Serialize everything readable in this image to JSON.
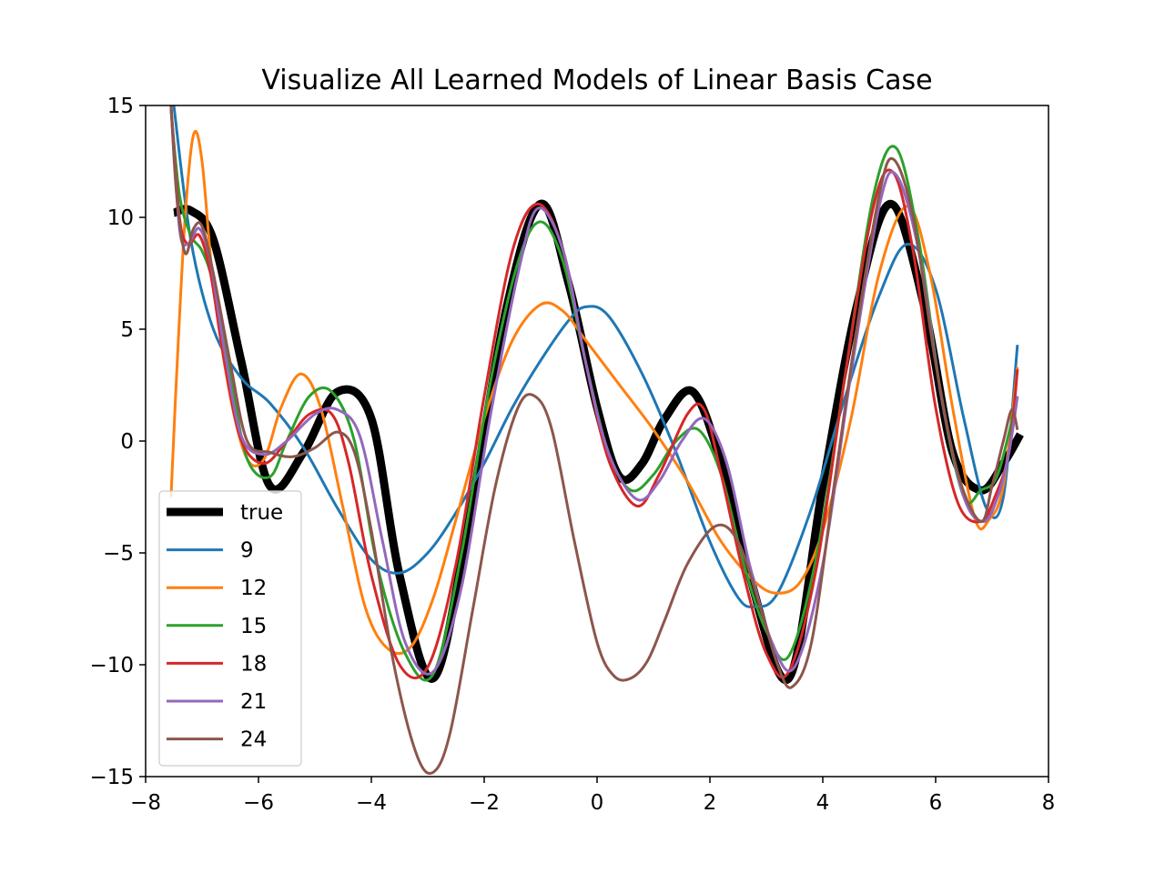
{
  "chart_data": {
    "type": "line",
    "title": "Visualize All Learned Models of Linear Basis Case",
    "xlabel": "",
    "ylabel": "",
    "xlim": [
      -8,
      8
    ],
    "ylim": [
      -15,
      15
    ],
    "x_ticks": [
      -8,
      -6,
      -4,
      -2,
      0,
      2,
      4,
      6,
      8
    ],
    "y_ticks": [
      -15,
      -10,
      -5,
      0,
      5,
      10,
      15
    ],
    "x_tick_labels": [
      "−8",
      "−6",
      "−4",
      "−2",
      "0",
      "2",
      "4",
      "6",
      "8"
    ],
    "y_tick_labels": [
      "−15",
      "−10",
      "−5",
      "0",
      "5",
      "10",
      "15"
    ],
    "grid": false,
    "legend_position": "lower-left",
    "series": [
      {
        "name": "true",
        "color": "#000000",
        "width": 9,
        "x": [
          -7.5,
          -7.2,
          -6.8,
          -6.3,
          -5.8,
          -5.2,
          -4.6,
          -4.0,
          -3.5,
          -2.9,
          -2.3,
          -1.6,
          -1.0,
          -0.5,
          0.0,
          0.4,
          0.8,
          1.2,
          1.7,
          2.2,
          2.7,
          3.4,
          4.0,
          4.6,
          5.2,
          5.8,
          6.3,
          6.8,
          7.2,
          7.5
        ],
        "y": [
          10.2,
          10.3,
          9.0,
          3.5,
          -2.0,
          -0.5,
          2.2,
          1.0,
          -6.0,
          -10.6,
          -4.0,
          6.0,
          10.6,
          7.0,
          1.5,
          -1.6,
          -1.0,
          1.0,
          2.2,
          -1.0,
          -6.0,
          -10.6,
          -2.0,
          6.0,
          10.6,
          6.0,
          -0.5,
          -2.2,
          -1.0,
          0.3
        ]
      },
      {
        "name": "9",
        "color": "#1f77b4",
        "width": 3,
        "x": [
          -7.5,
          -7.2,
          -6.8,
          -6.3,
          -5.8,
          -5.2,
          -4.6,
          -4.0,
          -3.5,
          -3.0,
          -2.5,
          -2.0,
          -1.5,
          -1.0,
          -0.5,
          -0.2,
          0.2,
          0.8,
          1.4,
          2.0,
          2.5,
          2.8,
          3.2,
          3.8,
          4.4,
          5.0,
          5.5,
          6.0,
          6.5,
          6.9,
          7.2,
          7.45
        ],
        "y": [
          15.0,
          9.0,
          5.0,
          2.8,
          1.7,
          -0.3,
          -3.0,
          -5.3,
          -5.9,
          -5.0,
          -3.2,
          -1.0,
          1.5,
          3.6,
          5.4,
          6.0,
          5.6,
          3.0,
          -0.5,
          -4.5,
          -7.0,
          -7.4,
          -6.8,
          -3.0,
          2.0,
          6.5,
          8.8,
          6.8,
          1.0,
          -3.0,
          -2.5,
          4.3
        ]
      },
      {
        "name": "12",
        "color": "#ff7f0e",
        "width": 3,
        "x": [
          -7.55,
          -7.45,
          -7.3,
          -7.15,
          -7.0,
          -6.8,
          -6.5,
          -6.2,
          -5.9,
          -5.6,
          -5.25,
          -4.9,
          -4.5,
          -4.1,
          -3.7,
          -3.3,
          -2.9,
          -2.5,
          -2.0,
          -1.5,
          -1.0,
          -0.6,
          -0.2,
          0.4,
          1.0,
          1.6,
          2.2,
          2.8,
          3.2,
          3.6,
          4.0,
          4.5,
          5.0,
          5.5,
          5.9,
          6.3,
          6.7,
          6.95,
          7.2,
          7.45
        ],
        "y": [
          -2.5,
          3.0,
          10.0,
          13.7,
          12.5,
          7.0,
          2.0,
          -0.8,
          -0.8,
          1.5,
          3.0,
          1.5,
          -3.0,
          -7.5,
          -9.3,
          -9.2,
          -7.0,
          -3.5,
          1.0,
          4.5,
          6.1,
          5.8,
          4.5,
          2.5,
          0.5,
          -1.8,
          -4.5,
          -6.3,
          -6.8,
          -6.3,
          -4.0,
          1.0,
          7.5,
          10.5,
          7.5,
          1.5,
          -3.5,
          -3.5,
          -2.0,
          3.3
        ]
      },
      {
        "name": "15",
        "color": "#2ca02c",
        "width": 3,
        "x": [
          -7.55,
          -7.4,
          -7.2,
          -7.0,
          -6.8,
          -6.5,
          -6.2,
          -5.8,
          -5.5,
          -5.1,
          -4.7,
          -4.3,
          -3.9,
          -3.4,
          -2.9,
          -2.4,
          -1.9,
          -1.4,
          -1.0,
          -0.6,
          -0.2,
          0.2,
          0.6,
          1.0,
          1.4,
          1.8,
          2.2,
          2.6,
          3.0,
          3.4,
          3.9,
          4.4,
          4.9,
          5.3,
          5.7,
          6.1,
          6.5,
          6.8,
          7.1,
          7.45
        ],
        "y": [
          14.8,
          11.0,
          9.2,
          8.5,
          7.0,
          3.0,
          -0.8,
          -1.6,
          0.0,
          2.0,
          2.2,
          0.0,
          -5.5,
          -9.5,
          -10.4,
          -5.0,
          2.5,
          8.0,
          9.8,
          8.0,
          3.5,
          -0.5,
          -2.2,
          -1.5,
          0.0,
          0.5,
          -1.5,
          -5.5,
          -8.5,
          -9.6,
          -5.0,
          3.0,
          11.0,
          13.1,
          9.0,
          2.0,
          -2.5,
          -2.2,
          -1.5,
          2.0
        ]
      },
      {
        "name": "18",
        "color": "#d62728",
        "width": 3,
        "x": [
          -7.55,
          -7.4,
          -7.25,
          -7.05,
          -6.85,
          -6.6,
          -6.3,
          -5.9,
          -5.5,
          -5.1,
          -4.7,
          -4.4,
          -4.0,
          -3.5,
          -3.0,
          -2.5,
          -2.0,
          -1.5,
          -1.05,
          -0.6,
          -0.2,
          0.2,
          0.7,
          1.1,
          1.6,
          1.9,
          2.2,
          2.6,
          3.0,
          3.4,
          3.9,
          4.4,
          4.9,
          5.25,
          5.6,
          6.0,
          6.4,
          6.8,
          7.05,
          7.3,
          7.45
        ],
        "y": [
          15.0,
          10.0,
          8.8,
          9.2,
          7.5,
          3.5,
          0.0,
          -1.0,
          0.0,
          1.2,
          1.2,
          -1.0,
          -6.0,
          -10.0,
          -10.1,
          -5.5,
          2.0,
          8.5,
          10.6,
          8.5,
          3.5,
          -0.8,
          -2.9,
          -1.5,
          1.2,
          1.4,
          -1.5,
          -6.0,
          -9.5,
          -10.3,
          -5.5,
          3.0,
          10.5,
          12.0,
          8.5,
          1.5,
          -2.8,
          -3.6,
          -2.5,
          -0.5,
          3.2
        ]
      },
      {
        "name": "21",
        "color": "#9467bd",
        "width": 3,
        "x": [
          -7.55,
          -7.4,
          -7.25,
          -7.05,
          -6.85,
          -6.6,
          -6.3,
          -5.9,
          -5.5,
          -5.0,
          -4.6,
          -4.2,
          -3.8,
          -3.4,
          -2.9,
          -2.4,
          -1.9,
          -1.4,
          -1.05,
          -0.6,
          -0.2,
          0.2,
          0.7,
          1.1,
          1.5,
          1.9,
          2.3,
          2.7,
          3.1,
          3.5,
          4.0,
          4.5,
          5.0,
          5.3,
          5.7,
          6.1,
          6.5,
          6.85,
          7.1,
          7.3,
          7.45
        ],
        "y": [
          15.0,
          9.5,
          8.8,
          9.5,
          8.0,
          4.0,
          0.2,
          -0.6,
          0.0,
          1.2,
          1.4,
          0.2,
          -4.5,
          -9.0,
          -10.3,
          -6.5,
          1.0,
          7.5,
          10.4,
          8.5,
          3.5,
          -0.5,
          -2.6,
          -1.8,
          0.0,
          1.0,
          -1.0,
          -5.5,
          -9.0,
          -10.1,
          -5.5,
          3.0,
          10.5,
          11.9,
          8.5,
          2.0,
          -2.5,
          -3.6,
          -2.5,
          -0.5,
          2.0
        ]
      },
      {
        "name": "24",
        "color": "#8c564b",
        "width": 3,
        "x": [
          -7.55,
          -7.45,
          -7.3,
          -7.15,
          -7.0,
          -6.8,
          -6.5,
          -6.2,
          -5.8,
          -5.4,
          -5.0,
          -4.6,
          -4.3,
          -4.0,
          -3.6,
          -3.2,
          -2.9,
          -2.6,
          -2.2,
          -1.8,
          -1.4,
          -1.1,
          -0.8,
          -0.4,
          0.0,
          0.3,
          0.6,
          0.9,
          1.2,
          1.6,
          2.1,
          2.5,
          2.9,
          3.2,
          3.45,
          3.8,
          4.2,
          4.6,
          5.0,
          5.25,
          5.6,
          6.0,
          6.4,
          6.8,
          7.0,
          7.2,
          7.35,
          7.45
        ],
        "y": [
          15.0,
          11.0,
          8.4,
          9.5,
          9.6,
          7.5,
          3.5,
          0.0,
          -0.5,
          -0.7,
          -0.3,
          0.4,
          -0.5,
          -4.0,
          -10.0,
          -14.0,
          -14.8,
          -13.0,
          -7.5,
          -2.0,
          1.5,
          2.0,
          0.5,
          -4.5,
          -9.0,
          -10.5,
          -10.6,
          -9.8,
          -8.0,
          -5.5,
          -3.8,
          -4.5,
          -7.5,
          -10.0,
          -11.0,
          -9.0,
          -2.0,
          5.0,
          11.0,
          12.6,
          10.0,
          3.5,
          -1.5,
          -3.6,
          -2.0,
          0.0,
          1.4,
          0.5
        ]
      }
    ]
  }
}
